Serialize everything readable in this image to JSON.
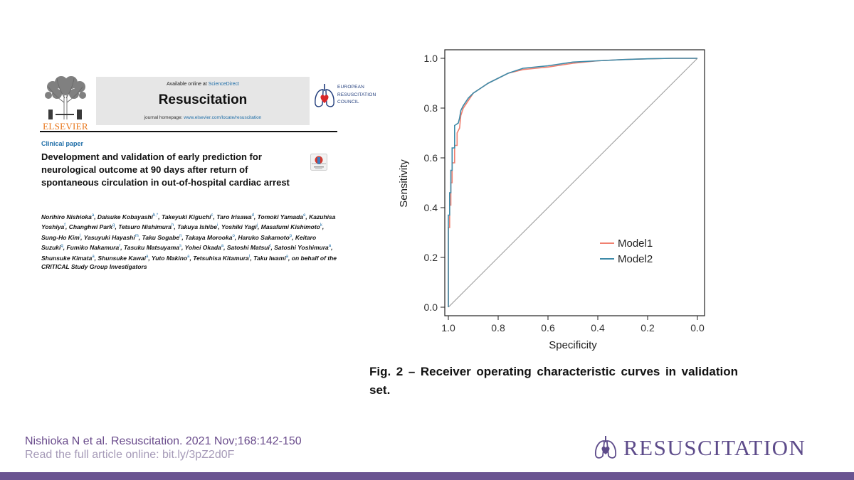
{
  "paper": {
    "publisher": "ELSEVIER",
    "available_prefix": "Available online at ",
    "available_source": "ScienceDirect",
    "journal": "Resuscitation",
    "homepage_prefix": "journal homepage: ",
    "homepage_url": "www.elsevier.com/locate/resuscitation",
    "council_lines": [
      "EUROPEAN",
      "RESUSCITATION",
      "COUNCIL"
    ],
    "section_label": "Clinical paper",
    "title": "Development and validation of early prediction for neurological outcome at 90 days after return of spontaneous circulation in out-of-hospital cardiac arrest",
    "crossmark_label": "Check for updates",
    "authors": [
      {
        "name": "Norihiro Nishioka",
        "aff": "a"
      },
      {
        "name": "Daisuke Kobayashi",
        "aff": "b,*"
      },
      {
        "name": "Takeyuki Kiguchi",
        "aff": "c"
      },
      {
        "name": "Taro Irisawa",
        "aff": "d"
      },
      {
        "name": "Tomoki Yamada",
        "aff": "e"
      },
      {
        "name": "Kazuhisa Yoshiya",
        "aff": "f"
      },
      {
        "name": "Changhwi Park",
        "aff": "g"
      },
      {
        "name": "Tetsuro Nishimura",
        "aff": "h"
      },
      {
        "name": "Takuya Ishibe",
        "aff": "i"
      },
      {
        "name": "Yoshiki Yagi",
        "aff": "j"
      },
      {
        "name": "Masafumi Kishimoto",
        "aff": "k"
      },
      {
        "name": "Sung-Ho Kim",
        "aff": "l"
      },
      {
        "name": "Yasuyuki Hayashi",
        "aff": "m"
      },
      {
        "name": "Taku Sogabe",
        "aff": "n"
      },
      {
        "name": "Takaya Morooka",
        "aff": "o"
      },
      {
        "name": "Haruko Sakamoto",
        "aff": "p"
      },
      {
        "name": "Keitaro Suzuki",
        "aff": "q"
      },
      {
        "name": "Fumiko Nakamura",
        "aff": "r"
      },
      {
        "name": "Tasuku Matsuyama",
        "aff": "s"
      },
      {
        "name": "Yohei Okada",
        "aff": "a"
      },
      {
        "name": "Satoshi Matsui",
        "aff": "t"
      },
      {
        "name": "Satoshi Yoshimura",
        "aff": "a"
      },
      {
        "name": "Shunsuke Kimata",
        "aff": "a"
      },
      {
        "name": "Shunsuke Kawai",
        "aff": "a"
      },
      {
        "name": "Yuto Makino",
        "aff": "a"
      },
      {
        "name": "Tetsuhisa Kitamura",
        "aff": "t"
      },
      {
        "name": "Taku Iwami",
        "aff": "a"
      }
    ],
    "authors_suffix": "on behalf of the CRITICAL Study Group Investigators"
  },
  "chart_data": {
    "type": "line",
    "xlabel": "Specificity",
    "ylabel": "Sensitivity",
    "xlim": [
      1.0,
      0.0
    ],
    "ylim": [
      0.0,
      1.0
    ],
    "x_reversed": true,
    "xticks": [
      "1.0",
      "0.8",
      "0.6",
      "0.4",
      "0.2",
      "0.0"
    ],
    "yticks": [
      "0.0",
      "0.2",
      "0.4",
      "0.6",
      "0.8",
      "1.0"
    ],
    "grid": false,
    "legend_position": "bottom-right",
    "reference_line": "diagonal",
    "series": [
      {
        "name": "Model1",
        "color": "#f08070",
        "x": [
          1.0,
          1.0,
          0.995,
          0.995,
          0.99,
          0.99,
          0.985,
          0.985,
          0.975,
          0.975,
          0.965,
          0.965,
          0.955,
          0.95,
          0.94,
          0.92,
          0.9,
          0.87,
          0.84,
          0.8,
          0.76,
          0.7,
          0.6,
          0.5,
          0.4,
          0.3,
          0.2,
          0.1,
          0.0
        ],
        "y": [
          0.0,
          0.32,
          0.32,
          0.41,
          0.41,
          0.5,
          0.5,
          0.58,
          0.58,
          0.65,
          0.65,
          0.7,
          0.72,
          0.77,
          0.8,
          0.83,
          0.86,
          0.88,
          0.9,
          0.92,
          0.94,
          0.955,
          0.965,
          0.98,
          0.99,
          0.995,
          0.998,
          1.0,
          1.0
        ]
      },
      {
        "name": "Model2",
        "color": "#3d8aa8",
        "x": [
          1.0,
          1.0,
          0.995,
          0.995,
          0.99,
          0.99,
          0.985,
          0.985,
          0.975,
          0.975,
          0.96,
          0.955,
          0.95,
          0.94,
          0.92,
          0.9,
          0.87,
          0.84,
          0.8,
          0.76,
          0.7,
          0.6,
          0.5,
          0.4,
          0.3,
          0.2,
          0.1,
          0.0
        ],
        "y": [
          0.0,
          0.37,
          0.37,
          0.46,
          0.46,
          0.55,
          0.55,
          0.64,
          0.64,
          0.73,
          0.74,
          0.76,
          0.79,
          0.81,
          0.84,
          0.86,
          0.88,
          0.9,
          0.92,
          0.94,
          0.96,
          0.97,
          0.985,
          0.99,
          0.995,
          0.998,
          1.0,
          1.0
        ]
      }
    ]
  },
  "figure": {
    "caption": "Fig. 2 – Receiver operating characteristic curves in validation set."
  },
  "footer": {
    "citation": "Nishioka N et al.  Resuscitation. 2021 Nov;168:142-150",
    "read_more": "Read the full article online: bit.ly/3pZ2d0F",
    "brand": "RESUSCITATION",
    "brand_color": "#5d4b8a"
  }
}
